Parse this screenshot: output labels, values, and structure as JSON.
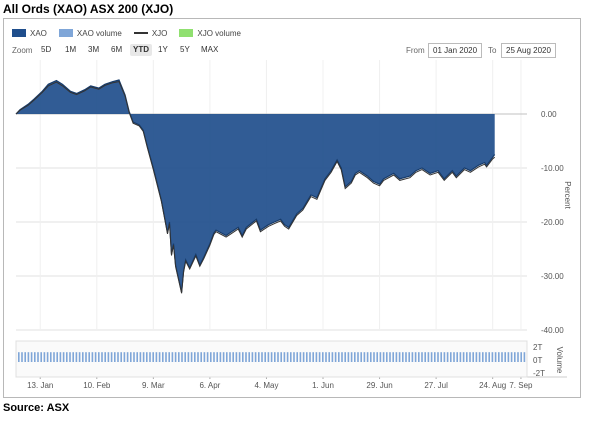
{
  "header": {
    "title": "All Ords (XAO) ASX 200 (XJO)"
  },
  "legend": [
    {
      "label": "XAO",
      "color": "#1f4e8c",
      "kind": "box"
    },
    {
      "label": "XAO volume",
      "color": "#7fa6d8",
      "kind": "box"
    },
    {
      "label": "XJO",
      "color": "#333333",
      "kind": "line"
    },
    {
      "label": "XJO volume",
      "color": "#90e070",
      "kind": "box"
    }
  ],
  "toolbar": {
    "zoom_label": "Zoom",
    "zoom_buttons": [
      "5D",
      "1M",
      "3M",
      "6M",
      "YTD",
      "1Y",
      "5Y",
      "MAX"
    ],
    "active_zoom": "YTD",
    "from_label": "From",
    "from_value": "01 Jan 2020",
    "to_label": "To",
    "to_value": "25 Aug 2020"
  },
  "footer": {
    "source": "Source: ASX"
  },
  "chart_data": [
    {
      "type": "area",
      "ylabel": "Percent",
      "ylim": [
        -40,
        10
      ],
      "yticks": [
        "0.00",
        "-10.00",
        "-20.00",
        "-30.00",
        "-40.00"
      ],
      "grid": true,
      "x_tick_labels": [
        "13. Jan",
        "10. Feb",
        "9. Mar",
        "6. Apr",
        "4. May",
        "1. Jun",
        "29. Jun",
        "27. Jul",
        "24. Aug",
        "7. Sep"
      ],
      "x_tick_dates": [
        "2020-01-13",
        "2020-02-10",
        "2020-03-09",
        "2020-04-06",
        "2020-05-04",
        "2020-06-01",
        "2020-06-29",
        "2020-07-27",
        "2020-08-24",
        "2020-09-07"
      ],
      "xlim": [
        "2020-01-01",
        "2020-09-10"
      ],
      "series": [
        {
          "name": "XAO",
          "color": "#1f4e8c",
          "points": [
            [
              "2020-01-01",
              0
            ],
            [
              "2020-01-03",
              0.8
            ],
            [
              "2020-01-07",
              1.8
            ],
            [
              "2020-01-10",
              2.8
            ],
            [
              "2020-01-14",
              4.2
            ],
            [
              "2020-01-17",
              5.5
            ],
            [
              "2020-01-21",
              6.2
            ],
            [
              "2020-01-24",
              5.5
            ],
            [
              "2020-01-28",
              4.2
            ],
            [
              "2020-01-31",
              3.8
            ],
            [
              "2020-02-04",
              4.5
            ],
            [
              "2020-02-07",
              5.2
            ],
            [
              "2020-02-11",
              4.8
            ],
            [
              "2020-02-14",
              5.5
            ],
            [
              "2020-02-18",
              6.0
            ],
            [
              "2020-02-21",
              6.3
            ],
            [
              "2020-02-24",
              3.5
            ],
            [
              "2020-02-26",
              0.5
            ],
            [
              "2020-02-28",
              -1.5
            ],
            [
              "2020-03-02",
              -2.0
            ],
            [
              "2020-03-04",
              -3.0
            ],
            [
              "2020-03-06",
              -6.0
            ],
            [
              "2020-03-09",
              -10.0
            ],
            [
              "2020-03-11",
              -13.0
            ],
            [
              "2020-03-13",
              -16.0
            ],
            [
              "2020-03-16",
              -22.0
            ],
            [
              "2020-03-17",
              -20.0
            ],
            [
              "2020-03-18",
              -26.0
            ],
            [
              "2020-03-19",
              -24.0
            ],
            [
              "2020-03-20",
              -28.0
            ],
            [
              "2020-03-23",
              -33.0
            ],
            [
              "2020-03-24",
              -29.0
            ],
            [
              "2020-03-25",
              -27.0
            ],
            [
              "2020-03-27",
              -28.5
            ],
            [
              "2020-03-30",
              -26.0
            ],
            [
              "2020-04-01",
              -28.0
            ],
            [
              "2020-04-03",
              -26.5
            ],
            [
              "2020-04-06",
              -24.0
            ],
            [
              "2020-04-08",
              -22.0
            ],
            [
              "2020-04-09",
              -21.5
            ],
            [
              "2020-04-14",
              -22.5
            ],
            [
              "2020-04-16",
              -22.0
            ],
            [
              "2020-04-20",
              -21.0
            ],
            [
              "2020-04-22",
              -22.5
            ],
            [
              "2020-04-24",
              -21.0
            ],
            [
              "2020-04-29",
              -19.5
            ],
            [
              "2020-05-01",
              -21.5
            ],
            [
              "2020-05-05",
              -20.5
            ],
            [
              "2020-05-08",
              -20.0
            ],
            [
              "2020-05-11",
              -19.5
            ],
            [
              "2020-05-13",
              -20.5
            ],
            [
              "2020-05-15",
              -21.0
            ],
            [
              "2020-05-19",
              -18.5
            ],
            [
              "2020-05-22",
              -17.5
            ],
            [
              "2020-05-26",
              -15.0
            ],
            [
              "2020-05-29",
              -15.5
            ],
            [
              "2020-06-02",
              -12.0
            ],
            [
              "2020-06-05",
              -10.5
            ],
            [
              "2020-06-08",
              -8.5
            ],
            [
              "2020-06-10",
              -10.0
            ],
            [
              "2020-06-12",
              -13.5
            ],
            [
              "2020-06-15",
              -12.5
            ],
            [
              "2020-06-17",
              -11.0
            ],
            [
              "2020-06-19",
              -10.5
            ],
            [
              "2020-06-23",
              -11.5
            ],
            [
              "2020-06-26",
              -12.5
            ],
            [
              "2020-06-29",
              -13.0
            ],
            [
              "2020-07-01",
              -12.0
            ],
            [
              "2020-07-06",
              -11.0
            ],
            [
              "2020-07-09",
              -12.0
            ],
            [
              "2020-07-14",
              -11.5
            ],
            [
              "2020-07-17",
              -10.5
            ],
            [
              "2020-07-20",
              -10.0
            ],
            [
              "2020-07-24",
              -11.0
            ],
            [
              "2020-07-28",
              -10.5
            ],
            [
              "2020-07-31",
              -12.0
            ],
            [
              "2020-08-04",
              -10.5
            ],
            [
              "2020-08-06",
              -11.5
            ],
            [
              "2020-08-10",
              -10.0
            ],
            [
              "2020-08-13",
              -10.5
            ],
            [
              "2020-08-17",
              -9.5
            ],
            [
              "2020-08-20",
              -9.0
            ],
            [
              "2020-08-21",
              -9.5
            ],
            [
              "2020-08-24",
              -8.0
            ],
            [
              "2020-08-25",
              -7.5
            ]
          ]
        },
        {
          "name": "XJO",
          "color": "#333333",
          "points": [
            [
              "2020-01-01",
              0
            ],
            [
              "2020-01-03",
              0.7
            ],
            [
              "2020-01-07",
              1.6
            ],
            [
              "2020-01-10",
              2.6
            ],
            [
              "2020-01-14",
              4.0
            ],
            [
              "2020-01-17",
              5.2
            ],
            [
              "2020-01-21",
              5.9
            ],
            [
              "2020-01-24",
              5.2
            ],
            [
              "2020-01-28",
              4.0
            ],
            [
              "2020-01-31",
              3.6
            ],
            [
              "2020-02-04",
              4.3
            ],
            [
              "2020-02-07",
              5.0
            ],
            [
              "2020-02-11",
              4.6
            ],
            [
              "2020-02-14",
              5.3
            ],
            [
              "2020-02-18",
              5.8
            ],
            [
              "2020-02-21",
              6.0
            ],
            [
              "2020-02-24",
              3.3
            ],
            [
              "2020-02-26",
              0.3
            ],
            [
              "2020-02-28",
              -1.7
            ],
            [
              "2020-03-02",
              -2.2
            ],
            [
              "2020-03-04",
              -3.2
            ],
            [
              "2020-03-06",
              -6.2
            ],
            [
              "2020-03-09",
              -10.3
            ],
            [
              "2020-03-11",
              -13.3
            ],
            [
              "2020-03-13",
              -16.2
            ],
            [
              "2020-03-16",
              -22.2
            ],
            [
              "2020-03-17",
              -20.3
            ],
            [
              "2020-03-18",
              -26.2
            ],
            [
              "2020-03-19",
              -24.3
            ],
            [
              "2020-03-20",
              -28.3
            ],
            [
              "2020-03-23",
              -33.2
            ],
            [
              "2020-03-24",
              -29.3
            ],
            [
              "2020-03-25",
              -27.3
            ],
            [
              "2020-03-27",
              -28.7
            ],
            [
              "2020-03-30",
              -26.3
            ],
            [
              "2020-04-01",
              -28.2
            ],
            [
              "2020-04-03",
              -26.8
            ],
            [
              "2020-04-06",
              -24.3
            ],
            [
              "2020-04-08",
              -22.3
            ],
            [
              "2020-04-09",
              -21.8
            ],
            [
              "2020-04-14",
              -22.8
            ],
            [
              "2020-04-16",
              -22.3
            ],
            [
              "2020-04-20",
              -21.3
            ],
            [
              "2020-04-22",
              -22.8
            ],
            [
              "2020-04-24",
              -21.3
            ],
            [
              "2020-04-29",
              -19.8
            ],
            [
              "2020-05-01",
              -21.8
            ],
            [
              "2020-05-05",
              -20.8
            ],
            [
              "2020-05-08",
              -20.3
            ],
            [
              "2020-05-11",
              -19.8
            ],
            [
              "2020-05-13",
              -20.8
            ],
            [
              "2020-05-15",
              -21.3
            ],
            [
              "2020-05-19",
              -18.8
            ],
            [
              "2020-05-22",
              -17.8
            ],
            [
              "2020-05-26",
              -15.3
            ],
            [
              "2020-05-29",
              -15.8
            ],
            [
              "2020-06-02",
              -12.3
            ],
            [
              "2020-06-05",
              -10.8
            ],
            [
              "2020-06-08",
              -8.8
            ],
            [
              "2020-06-10",
              -10.3
            ],
            [
              "2020-06-12",
              -13.8
            ],
            [
              "2020-06-15",
              -12.8
            ],
            [
              "2020-06-17",
              -11.3
            ],
            [
              "2020-06-19",
              -10.8
            ],
            [
              "2020-06-23",
              -11.8
            ],
            [
              "2020-06-26",
              -12.8
            ],
            [
              "2020-06-29",
              -13.3
            ],
            [
              "2020-07-01",
              -12.3
            ],
            [
              "2020-07-06",
              -11.3
            ],
            [
              "2020-07-09",
              -12.3
            ],
            [
              "2020-07-14",
              -11.8
            ],
            [
              "2020-07-17",
              -10.8
            ],
            [
              "2020-07-20",
              -10.3
            ],
            [
              "2020-07-24",
              -11.3
            ],
            [
              "2020-07-28",
              -10.8
            ],
            [
              "2020-07-31",
              -12.3
            ],
            [
              "2020-08-04",
              -10.8
            ],
            [
              "2020-08-06",
              -11.8
            ],
            [
              "2020-08-10",
              -10.3
            ],
            [
              "2020-08-13",
              -10.8
            ],
            [
              "2020-08-17",
              -9.8
            ],
            [
              "2020-08-20",
              -9.3
            ],
            [
              "2020-08-21",
              -9.8
            ],
            [
              "2020-08-24",
              -8.3
            ],
            [
              "2020-08-25",
              -8.0
            ]
          ]
        }
      ]
    },
    {
      "type": "bar",
      "ylabel": "Volume",
      "yticks": [
        "2T",
        "0T",
        "-2T"
      ],
      "ylim": [
        -2,
        2
      ],
      "series": [
        {
          "name": "XAO volume",
          "color": "#7fa6d8"
        }
      ]
    }
  ]
}
